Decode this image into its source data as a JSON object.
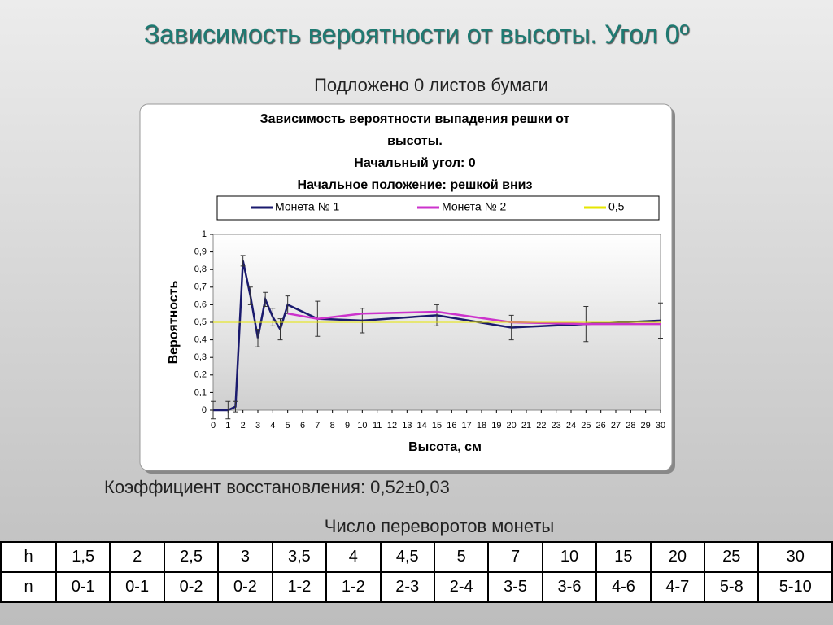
{
  "slide_title": "Зависимость вероятности от высоты. Угол 0º",
  "subtitle": "Подложено 0 листов бумаги",
  "chart_data": {
    "type": "line",
    "title_lines": [
      "Зависимость вероятности выпадения решки от",
      "высоты.",
      "Начальный угол: 0",
      "Начальное положение: решкой вниз"
    ],
    "x_label": "Высота, см",
    "y_label": "Вероятность",
    "xlim": [
      0,
      30
    ],
    "xticks": [
      0,
      1,
      2,
      3,
      4,
      5,
      6,
      7,
      8,
      9,
      10,
      11,
      12,
      13,
      14,
      15,
      16,
      17,
      18,
      19,
      20,
      21,
      22,
      23,
      24,
      25,
      26,
      27,
      28,
      29,
      30
    ],
    "ylim": [
      0,
      1
    ],
    "yticks": [
      0,
      {
        "value": 0.1,
        "label": "0,1"
      },
      {
        "value": 0.2,
        "label": "0,2"
      },
      {
        "value": 0.3,
        "label": "0,3"
      },
      {
        "value": 0.4,
        "label": "0,4"
      },
      {
        "value": 0.5,
        "label": "0,5"
      },
      {
        "value": 0.6,
        "label": "0,6"
      },
      {
        "value": 0.7,
        "label": "0,7"
      },
      {
        "value": 0.8,
        "label": "0,8"
      },
      {
        "value": 0.9,
        "label": "0,9"
      },
      1
    ],
    "series": [
      {
        "name": "Монета № 1",
        "color": "#1a1a6e",
        "x": [
          0,
          1,
          1.5,
          2,
          2.5,
          3,
          3.5,
          4,
          4.5,
          5,
          7,
          10,
          15,
          20,
          25,
          30
        ],
        "values": [
          0,
          0,
          0.02,
          0.85,
          0.65,
          0.41,
          0.63,
          0.53,
          0.46,
          0.6,
          0.52,
          0.51,
          0.54,
          0.47,
          0.49,
          0.51
        ],
        "errors": [
          0.05,
          0.05,
          0.03,
          0.03,
          0.05,
          0.05,
          0.04,
          0.05,
          0.06,
          0.05,
          0.1,
          0.07,
          0.06,
          0.07,
          0.1,
          0.1
        ]
      },
      {
        "name": "Монета № 2",
        "color": "#cc33cc",
        "x": [
          5,
          7,
          10,
          15,
          20,
          25,
          30
        ],
        "values": [
          0.55,
          0.52,
          0.55,
          0.56,
          0.5,
          0.49,
          0.49
        ]
      },
      {
        "name": "0,5",
        "color": "#e6e600",
        "x": [
          0,
          30
        ],
        "values": [
          0.5,
          0.5
        ]
      }
    ]
  },
  "coefficient": "Коэффициент восстановления: 0,52±0,03",
  "table": {
    "caption": "Число переворотов монеты",
    "rows": [
      [
        "h",
        "1,5",
        "2",
        "2,5",
        "3",
        "3,5",
        "4",
        "4,5",
        "5",
        "7",
        "10",
        "15",
        "20",
        "25",
        "30"
      ],
      [
        "n",
        "0-1",
        "0-1",
        "0-2",
        "0-2",
        "1-2",
        "1-2",
        "2-3",
        "2-4",
        "3-5",
        "3-6",
        "4-6",
        "4-7",
        "5-8",
        "5-10"
      ]
    ]
  }
}
